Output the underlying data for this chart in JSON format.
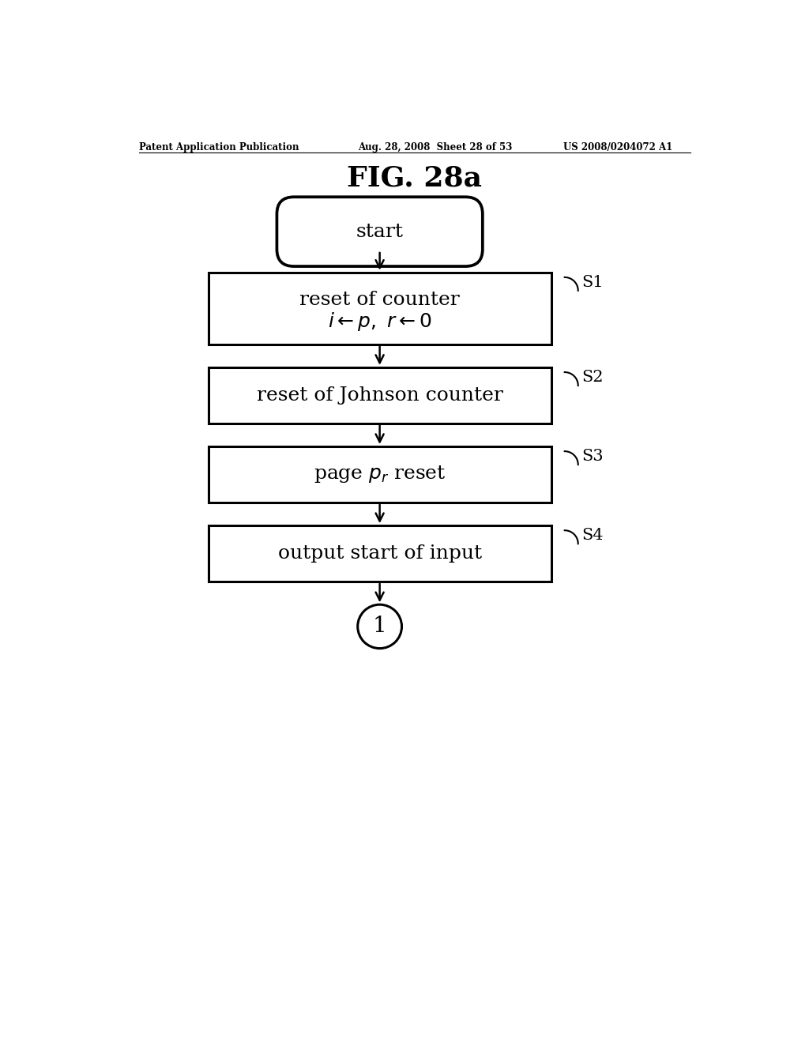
{
  "title": "FIG. 28a",
  "header_left": "Patent Application Publication",
  "header_center": "Aug. 28, 2008  Sheet 28 of 53",
  "header_right": "US 2008/0204072 A1",
  "background_color": "#ffffff",
  "flowchart": {
    "start_label": "start",
    "boxes": [
      {
        "id": "S1",
        "line1": "reset of counter",
        "line2": "$i \\leftarrow p,\\ r \\leftarrow 0$",
        "label": "S1"
      },
      {
        "id": "S2",
        "line1": "reset of Johnson counter",
        "line2": null,
        "label": "S2"
      },
      {
        "id": "S3",
        "line1": "page $p_r$ reset",
        "line2": null,
        "label": "S3"
      },
      {
        "id": "S4",
        "line1": "output start of input",
        "line2": null,
        "label": "S4"
      }
    ],
    "end_label": "1"
  }
}
